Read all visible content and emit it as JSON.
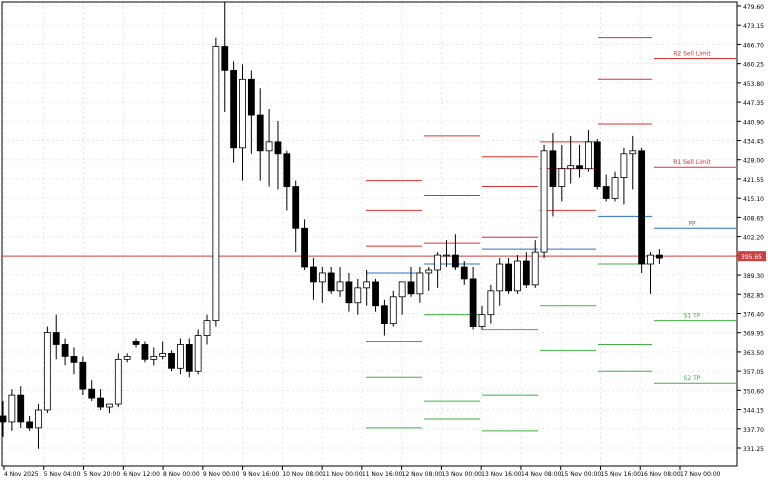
{
  "chart_data": {
    "type": "candlestick",
    "current_price": "395.65",
    "y_ticks": [
      "479.60",
      "473.15",
      "466.70",
      "460.25",
      "453.80",
      "447.35",
      "440.90",
      "434.45",
      "428.00",
      "421.55",
      "415.10",
      "408.65",
      "402.20",
      "395.75",
      "389.30",
      "382.85",
      "376.40",
      "369.95",
      "363.50",
      "357.05",
      "350.60",
      "344.15",
      "337.70",
      "331.25"
    ],
    "x_ticks": [
      "4 Nov 2025",
      "5 Nov 04:00",
      "5 Nov 20:00",
      "6 Nov 12:00",
      "8 Nov 00:00",
      "9 Nov 00:00",
      "9 Nov 16:00",
      "10 Nov 08:00",
      "11 Nov 00:00",
      "11 Nov 16:00",
      "12 Nov 08:00",
      "13 Nov 00:00",
      "13 Nov 16:00",
      "14 Nov 08:00",
      "15 Nov 00:00",
      "15 Nov 16:00",
      "16 Nov 08:00",
      "17 Nov 00:00"
    ],
    "levels": [
      {
        "label": "R2 Sell Limit",
        "value": 462.0,
        "color": "#e03030"
      },
      {
        "label": "R1 Sell Limit",
        "value": 425.5,
        "color": "#e03030"
      },
      {
        "label": "PP",
        "value": 405.0,
        "color": "#3070c0"
      },
      {
        "label": "S1 TP",
        "value": 374.0,
        "color": "#40b040"
      },
      {
        "label": "S2 TP",
        "value": 353.0,
        "color": "#40b040"
      }
    ],
    "candles": [
      [
        342,
        347,
        335,
        340
      ],
      [
        340,
        351,
        337,
        349
      ],
      [
        349,
        352,
        338,
        340
      ],
      [
        340,
        342,
        337,
        338
      ],
      [
        338,
        346,
        331,
        344
      ],
      [
        344,
        372,
        343,
        370
      ],
      [
        370,
        376,
        361,
        366
      ],
      [
        366,
        368,
        359,
        362
      ],
      [
        362,
        365,
        356,
        360
      ],
      [
        360,
        362,
        349,
        351
      ],
      [
        351,
        354,
        347,
        348
      ],
      [
        348,
        351,
        344,
        345
      ],
      [
        345,
        346,
        343,
        346
      ],
      [
        346,
        363,
        345,
        361
      ],
      [
        361,
        363,
        360,
        362
      ],
      [
        367,
        368,
        365,
        366
      ],
      [
        366,
        367,
        360,
        361
      ],
      [
        361,
        365,
        359,
        362
      ],
      [
        362,
        367,
        361,
        363
      ],
      [
        363,
        364,
        357,
        358
      ],
      [
        358,
        368,
        356,
        366
      ],
      [
        366,
        368,
        355,
        357
      ],
      [
        357,
        371,
        356,
        369
      ],
      [
        369,
        376,
        366,
        374
      ],
      [
        374,
        469,
        372,
        466
      ],
      [
        466,
        481,
        444,
        458
      ],
      [
        458,
        461,
        427,
        432
      ],
      [
        432,
        460,
        421,
        455
      ],
      [
        455,
        458,
        430,
        443
      ],
      [
        443,
        452,
        421,
        431
      ],
      [
        431,
        445,
        419,
        434
      ],
      [
        434,
        441,
        418,
        430
      ],
      [
        430,
        431,
        411,
        419
      ],
      [
        419,
        421,
        397,
        405
      ],
      [
        405,
        408,
        391,
        392
      ],
      [
        392,
        395,
        381,
        387
      ],
      [
        387,
        392,
        380,
        390
      ],
      [
        390,
        392,
        383,
        384
      ],
      [
        384,
        392,
        382,
        387
      ],
      [
        387,
        390,
        377,
        380
      ],
      [
        380,
        388,
        376,
        385
      ],
      [
        385,
        391,
        379,
        387
      ],
      [
        387,
        388,
        377,
        379
      ],
      [
        379,
        381,
        369,
        373
      ],
      [
        373,
        384,
        372,
        382
      ],
      [
        382,
        387,
        376,
        387
      ],
      [
        387,
        392,
        382,
        383
      ],
      [
        383,
        392,
        380,
        390
      ],
      [
        390,
        392,
        384,
        391
      ],
      [
        391,
        397,
        385,
        396
      ],
      [
        396,
        401,
        392,
        396
      ],
      [
        396,
        403,
        391,
        392
      ],
      [
        392,
        394,
        386,
        388
      ],
      [
        388,
        392,
        371,
        372
      ],
      [
        372,
        379,
        371,
        376
      ],
      [
        376,
        386,
        373,
        384
      ],
      [
        384,
        395,
        379,
        393
      ],
      [
        393,
        395,
        383,
        384
      ],
      [
        384,
        396,
        383,
        394
      ],
      [
        394,
        397,
        385,
        386
      ],
      [
        386,
        401,
        385,
        397
      ],
      [
        397,
        433,
        395,
        431
      ],
      [
        431,
        437,
        409,
        419
      ],
      [
        419,
        433,
        414,
        425
      ],
      [
        425,
        436,
        420,
        426
      ],
      [
        426,
        433,
        422,
        425
      ],
      [
        425,
        438,
        424,
        434
      ],
      [
        434,
        435,
        418,
        419
      ],
      [
        419,
        423,
        414,
        415
      ],
      [
        415,
        424,
        414,
        422
      ],
      [
        422,
        432,
        413,
        430
      ],
      [
        430,
        436,
        418,
        431
      ],
      [
        431,
        432,
        390,
        393
      ],
      [
        393,
        397,
        383,
        396
      ],
      [
        396,
        398,
        393,
        395
      ]
    ]
  }
}
